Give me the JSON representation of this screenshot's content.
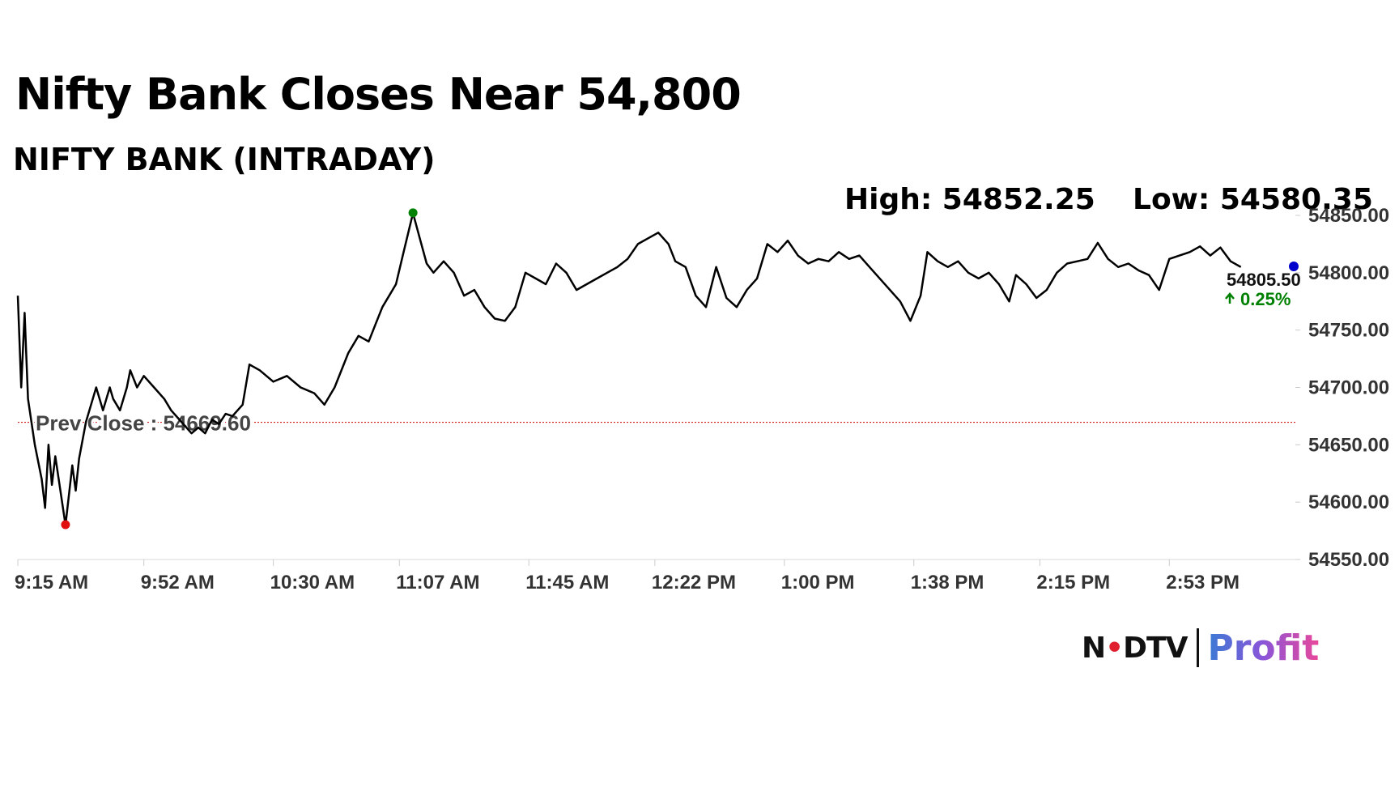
{
  "header": {
    "title": "Nifty Bank Closes Near 54,800",
    "subtitle": "NIFTY BANK (INTRADAY)",
    "high_text": "High: 54852.25",
    "low_text": "Low: 54580.35"
  },
  "brand": {
    "ndtv": "NDTV",
    "profit": "Profit"
  },
  "chart_data": {
    "type": "line",
    "title": "Nifty Bank Closes Near 54,800",
    "subtitle": "NIFTY BANK (INTRADAY)",
    "ylim": [
      54550,
      54850
    ],
    "x_range": [
      "9:15 AM",
      "3:30 PM"
    ],
    "x_ticks": [
      "9:15 AM",
      "9:52 AM",
      "10:30 AM",
      "11:07 AM",
      "11:45 AM",
      "12:22 PM",
      "1:00 PM",
      "1:38 PM",
      "2:15 PM",
      "2:53 PM"
    ],
    "y_ticks": [
      54550,
      54600,
      54650,
      54700,
      54750,
      54800,
      54850
    ],
    "y_tick_labels": [
      "54550.00",
      "54600.00",
      "54650.00",
      "54700.00",
      "54750.00",
      "54800.00",
      "54850.00"
    ],
    "grid": false,
    "prev_close": {
      "value": 54669.6,
      "label": "Prev Close : 54669.60",
      "color": "#cc0000"
    },
    "high": {
      "time": "11:11 AM",
      "value": 54852.25,
      "color": "#008000"
    },
    "low": {
      "time": "9:29 AM",
      "value": 54580.35,
      "color": "#e01010"
    },
    "last": {
      "time": "3:30 PM",
      "value": 54805.5,
      "label": "54805.50",
      "change_label": "0.25%",
      "change_color": "#008000",
      "marker_color": "#0000cc"
    },
    "series": [
      {
        "line_color": "#000000",
        "points": [
          [
            "9:15 AM",
            54780
          ],
          [
            "9:16 AM",
            54700
          ],
          [
            "9:17 AM",
            54765
          ],
          [
            "9:18 AM",
            54690
          ],
          [
            "9:20 AM",
            54650
          ],
          [
            "9:22 AM",
            54620
          ],
          [
            "9:23 AM",
            54595
          ],
          [
            "9:24 AM",
            54650
          ],
          [
            "9:25 AM",
            54615
          ],
          [
            "9:26 AM",
            54640
          ],
          [
            "9:27 AM",
            54620
          ],
          [
            "9:29 AM",
            54580
          ],
          [
            "9:31 AM",
            54632
          ],
          [
            "9:32 AM",
            54610
          ],
          [
            "9:33 AM",
            54638
          ],
          [
            "9:35 AM",
            54670
          ],
          [
            "9:37 AM",
            54690
          ],
          [
            "9:38 AM",
            54700
          ],
          [
            "9:40 AM",
            54680
          ],
          [
            "9:42 AM",
            54700
          ],
          [
            "9:43 AM",
            54690
          ],
          [
            "9:45 AM",
            54680
          ],
          [
            "9:47 AM",
            54700
          ],
          [
            "9:48 AM",
            54715
          ],
          [
            "9:50 AM",
            54700
          ],
          [
            "9:52 AM",
            54710
          ],
          [
            "9:55 AM",
            54700
          ],
          [
            "9:58 AM",
            54690
          ],
          [
            "10:00 AM",
            54680
          ],
          [
            "10:03 AM",
            54670
          ],
          [
            "10:06 AM",
            54660
          ],
          [
            "10:08 AM",
            54665
          ],
          [
            "10:10 AM",
            54660
          ],
          [
            "10:12 AM",
            54672
          ],
          [
            "10:14 AM",
            54668
          ],
          [
            "10:16 AM",
            54677
          ],
          [
            "10:18 AM",
            54675
          ],
          [
            "10:21 AM",
            54685
          ],
          [
            "10:23 AM",
            54720
          ],
          [
            "10:26 AM",
            54715
          ],
          [
            "10:30 AM",
            54705
          ],
          [
            "10:34 AM",
            54710
          ],
          [
            "10:38 AM",
            54700
          ],
          [
            "10:42 AM",
            54695
          ],
          [
            "10:45 AM",
            54685
          ],
          [
            "10:48 AM",
            54700
          ],
          [
            "10:52 AM",
            54730
          ],
          [
            "10:55 AM",
            54745
          ],
          [
            "10:58 AM",
            54740
          ],
          [
            "11:00 AM",
            54755
          ],
          [
            "11:02 AM",
            54770
          ],
          [
            "11:04 AM",
            54780
          ],
          [
            "11:06 AM",
            54790
          ],
          [
            "11:08 AM",
            54815
          ],
          [
            "11:11 AM",
            54852
          ],
          [
            "11:13 AM",
            54830
          ],
          [
            "11:15 AM",
            54808
          ],
          [
            "11:17 AM",
            54800
          ],
          [
            "11:20 AM",
            54810
          ],
          [
            "11:23 AM",
            54800
          ],
          [
            "11:26 AM",
            54780
          ],
          [
            "11:29 AM",
            54785
          ],
          [
            "11:32 AM",
            54770
          ],
          [
            "11:35 AM",
            54760
          ],
          [
            "11:38 AM",
            54758
          ],
          [
            "11:41 AM",
            54770
          ],
          [
            "11:44 AM",
            54800
          ],
          [
            "11:47 AM",
            54795
          ],
          [
            "11:50 AM",
            54790
          ],
          [
            "11:53 AM",
            54808
          ],
          [
            "11:56 AM",
            54800
          ],
          [
            "11:59 AM",
            54785
          ],
          [
            "12:02 PM",
            54790
          ],
          [
            "12:05 PM",
            54795
          ],
          [
            "12:08 PM",
            54800
          ],
          [
            "12:11 PM",
            54805
          ],
          [
            "12:14 PM",
            54812
          ],
          [
            "12:17 PM",
            54825
          ],
          [
            "12:20 PM",
            54830
          ],
          [
            "12:23 PM",
            54835
          ],
          [
            "12:26 PM",
            54825
          ],
          [
            "12:28 PM",
            54810
          ],
          [
            "12:31 PM",
            54805
          ],
          [
            "12:34 PM",
            54780
          ],
          [
            "12:37 PM",
            54770
          ],
          [
            "12:40 PM",
            54805
          ],
          [
            "12:43 PM",
            54778
          ],
          [
            "12:46 PM",
            54770
          ],
          [
            "12:49 PM",
            54785
          ],
          [
            "12:52 PM",
            54795
          ],
          [
            "12:55 PM",
            54825
          ],
          [
            "12:58 PM",
            54818
          ],
          [
            "1:01 PM",
            54828
          ],
          [
            "1:04 PM",
            54815
          ],
          [
            "1:07 PM",
            54808
          ],
          [
            "1:10 PM",
            54812
          ],
          [
            "1:13 PM",
            54810
          ],
          [
            "1:16 PM",
            54818
          ],
          [
            "1:19 PM",
            54812
          ],
          [
            "1:22 PM",
            54815
          ],
          [
            "1:25 PM",
            54805
          ],
          [
            "1:28 PM",
            54795
          ],
          [
            "1:31 PM",
            54785
          ],
          [
            "1:34 PM",
            54775
          ],
          [
            "1:37 PM",
            54758
          ],
          [
            "1:40 PM",
            54780
          ],
          [
            "1:42 PM",
            54818
          ],
          [
            "1:45 PM",
            54810
          ],
          [
            "1:48 PM",
            54805
          ],
          [
            "1:51 PM",
            54810
          ],
          [
            "1:54 PM",
            54800
          ],
          [
            "1:57 PM",
            54795
          ],
          [
            "2:00 PM",
            54800
          ],
          [
            "2:03 PM",
            54790
          ],
          [
            "2:06 PM",
            54775
          ],
          [
            "2:08 PM",
            54798
          ],
          [
            "2:11 PM",
            54790
          ],
          [
            "2:14 PM",
            54778
          ],
          [
            "2:17 PM",
            54785
          ],
          [
            "2:20 PM",
            54800
          ],
          [
            "2:23 PM",
            54808
          ],
          [
            "2:26 PM",
            54810
          ],
          [
            "2:29 PM",
            54812
          ],
          [
            "2:32 PM",
            54826
          ],
          [
            "2:35 PM",
            54812
          ],
          [
            "2:38 PM",
            54805
          ],
          [
            "2:41 PM",
            54808
          ],
          [
            "2:44 PM",
            54802
          ],
          [
            "2:47 PM",
            54798
          ],
          [
            "2:50 PM",
            54785
          ],
          [
            "2:53 PM",
            54812
          ],
          [
            "2:56 PM",
            54815
          ],
          [
            "2:59 PM",
            54818
          ],
          [
            "3:02 PM",
            54823
          ],
          [
            "3:05 PM",
            54815
          ],
          [
            "3:08 PM",
            54822
          ],
          [
            "3:11 PM",
            54810
          ],
          [
            "3:14 PM",
            54805
          ]
        ]
      }
    ]
  }
}
